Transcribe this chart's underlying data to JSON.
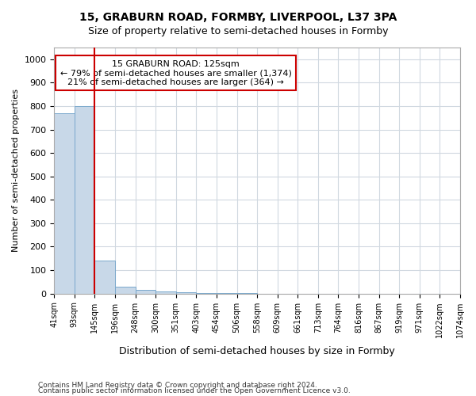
{
  "title": "15, GRABURN ROAD, FORMBY, LIVERPOOL, L37 3PA",
  "subtitle": "Size of property relative to semi-detached houses in Formby",
  "xlabel": "Distribution of semi-detached houses by size in Formby",
  "ylabel": "Number of semi-detached properties",
  "bin_labels": [
    "41sqm",
    "93sqm",
    "145sqm",
    "196sqm",
    "248sqm",
    "300sqm",
    "351sqm",
    "403sqm",
    "454sqm",
    "506sqm",
    "558sqm",
    "609sqm",
    "661sqm",
    "713sqm",
    "764sqm",
    "816sqm",
    "867sqm",
    "919sqm",
    "971sqm",
    "1022sqm",
    "1074sqm"
  ],
  "bar_values": [
    770,
    800,
    140,
    30,
    15,
    10,
    5,
    2,
    1,
    1,
    0,
    0,
    0,
    0,
    0,
    0,
    0,
    0,
    0,
    0
  ],
  "bar_color": "#c8d8e8",
  "bar_edge_color": "#7aa8cc",
  "annotation_text": "15 GRABURN ROAD: 125sqm\n← 79% of semi-detached houses are smaller (1,374)\n21% of semi-detached houses are larger (364) →",
  "annotation_box_color": "#ffffff",
  "annotation_box_edge": "#cc0000",
  "red_line_color": "#cc0000",
  "red_line_x": 2.0,
  "ylim": [
    0,
    1050
  ],
  "yticks": [
    0,
    100,
    200,
    300,
    400,
    500,
    600,
    700,
    800,
    900,
    1000
  ],
  "footnote1": "Contains HM Land Registry data © Crown copyright and database right 2024.",
  "footnote2": "Contains public sector information licensed under the Open Government Licence v3.0.",
  "background_color": "#ffffff",
  "grid_color": "#d0d8e0"
}
